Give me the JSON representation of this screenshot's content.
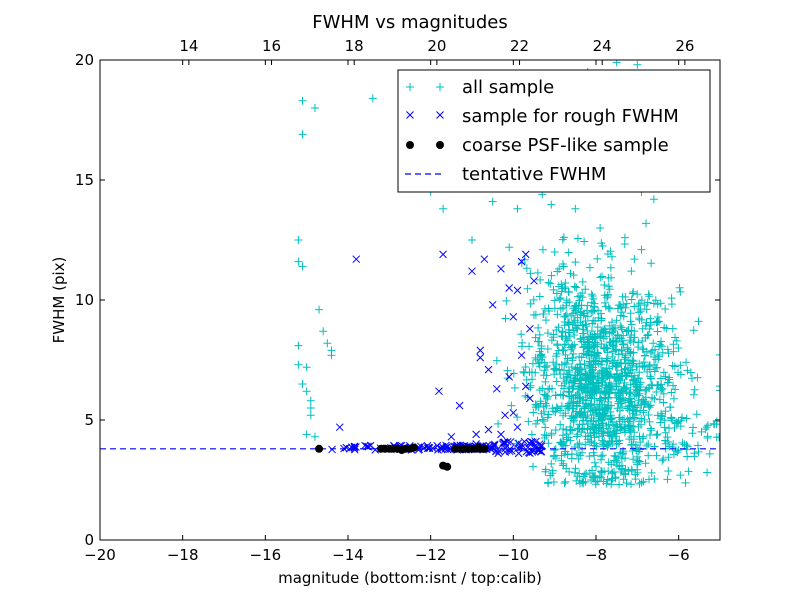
{
  "chart_data": {
    "type": "scatter",
    "title": "FWHM vs magnitudes",
    "xlabel": "magnitude (bottom:isnt / top:calib)",
    "ylabel": "FWHM (pix)",
    "xlim": [
      -20,
      -5
    ],
    "ylim": [
      0,
      20
    ],
    "x_ticks": [
      -20,
      -18,
      -16,
      -14,
      -12,
      -10,
      -8,
      -6
    ],
    "x_tick_labels": [
      "−20",
      "−18",
      "−16",
      "−14",
      "−12",
      "−10",
      "−8",
      "−6"
    ],
    "y_ticks": [
      0,
      5,
      10,
      15,
      20
    ],
    "y_tick_labels": [
      "0",
      "5",
      "10",
      "15",
      "20"
    ],
    "top_axis": {
      "offset": 31.85,
      "ticks": [
        14,
        16,
        18,
        20,
        22,
        24,
        26
      ],
      "tick_labels": [
        "14",
        "16",
        "18",
        "20",
        "22",
        "24",
        "26"
      ]
    },
    "grid": false,
    "legend_position": "top-right",
    "colors": {
      "all": "#00bfbf",
      "rough": "#0000ff",
      "coarse": "#000000",
      "tentative": "#0000ff"
    },
    "tentative_fwhm": 3.8,
    "series": [
      {
        "name": "all sample",
        "marker": "plus",
        "color": "#00bfbf",
        "points": [
          [
            -15.1,
            18.3
          ],
          [
            -14.8,
            18.0
          ],
          [
            -15.1,
            16.9
          ],
          [
            -13.4,
            18.4
          ],
          [
            -15.2,
            12.5
          ],
          [
            -15.2,
            11.6
          ],
          [
            -15.1,
            11.4
          ],
          [
            -14.7,
            9.6
          ],
          [
            -14.6,
            8.7
          ],
          [
            -14.5,
            8.2
          ],
          [
            -15.2,
            8.1
          ],
          [
            -14.4,
            7.9
          ],
          [
            -14.4,
            7.7
          ],
          [
            -15.2,
            7.3
          ],
          [
            -15.0,
            7.2
          ],
          [
            -15.1,
            6.5
          ],
          [
            -15.0,
            6.2
          ],
          [
            -14.9,
            5.8
          ],
          [
            -14.9,
            5.5
          ],
          [
            -14.9,
            5.2
          ],
          [
            -15.0,
            4.4
          ],
          [
            -14.8,
            4.3
          ],
          [
            -12.0,
            14.5
          ],
          [
            -11.7,
            13.8
          ],
          [
            -11.6,
            15.0
          ],
          [
            -10.5,
            14.1
          ],
          [
            -11.0,
            12.5
          ],
          [
            -10.1,
            12.2
          ],
          [
            -9.9,
            13.8
          ],
          [
            -9.3,
            14.4
          ],
          [
            -7.5,
            19.9
          ],
          [
            -7.0,
            19.8
          ],
          [
            -8.2,
            19.5
          ],
          [
            -7.8,
            19.2
          ],
          [
            -6.6,
            18.6
          ],
          [
            -8.6,
            18.0
          ],
          [
            -7.2,
            17.7
          ],
          [
            -6.9,
            14.5
          ],
          [
            -6.6,
            14.2
          ],
          [
            -7.3,
            12.6
          ],
          [
            -6.9,
            12.1
          ],
          [
            -7.9,
            13.0
          ],
          [
            -8.5,
            13.8
          ],
          [
            -9.0,
            12.0
          ],
          [
            -8.8,
            11.5
          ]
        ],
        "cluster": {
          "x_min": -10.4,
          "x_max": -5.0,
          "center_x": -7.9,
          "center_y": 6.0,
          "y_spread": 2.2,
          "y_min": 2.3,
          "y_max": 14.0,
          "count": 1400
        }
      },
      {
        "name": "sample for rough FWHM",
        "marker": "x",
        "color": "#0000ff",
        "points": [
          [
            -14.2,
            4.7
          ],
          [
            -13.8,
            11.7
          ],
          [
            -11.8,
            6.2
          ],
          [
            -11.7,
            11.9
          ],
          [
            -11.3,
            5.6
          ],
          [
            -11.0,
            11.2
          ],
          [
            -10.9,
            4.4
          ],
          [
            -10.9,
            4.0
          ],
          [
            -10.8,
            7.9
          ],
          [
            -10.8,
            7.6
          ],
          [
            -10.7,
            11.7
          ],
          [
            -10.6,
            7.1
          ],
          [
            -10.4,
            6.3
          ],
          [
            -10.3,
            4.4
          ],
          [
            -10.1,
            10.5
          ],
          [
            -10.1,
            6.8
          ],
          [
            -10.0,
            5.3
          ],
          [
            -10.5,
            9.8
          ],
          [
            -10.3,
            11.3
          ],
          [
            -10.0,
            9.3
          ],
          [
            -9.9,
            10.4
          ],
          [
            -9.8,
            7.7
          ],
          [
            -9.8,
            11.6
          ],
          [
            -9.7,
            6.4
          ],
          [
            -9.6,
            8.8
          ],
          [
            -9.6,
            5.9
          ],
          [
            -9.5,
            10.8
          ],
          [
            -9.9,
            4.7
          ],
          [
            -11.5,
            4.3
          ],
          [
            -10.6,
            4.6
          ],
          [
            -10.2,
            5.2
          ],
          [
            -9.7,
            11.9
          ]
        ],
        "band": {
          "x_min": -14.5,
          "x_max": -9.3,
          "y_center": 3.85,
          "y_spread": 0.1,
          "count": 150
        }
      },
      {
        "name": "coarse PSF-like sample",
        "marker": "circle",
        "color": "#000000",
        "points": [
          [
            -14.7,
            3.8
          ],
          [
            -13.2,
            3.8
          ],
          [
            -13.1,
            3.8
          ],
          [
            -13.0,
            3.8
          ],
          [
            -12.9,
            3.8
          ],
          [
            -12.8,
            3.8
          ],
          [
            -12.7,
            3.75
          ],
          [
            -12.6,
            3.8
          ],
          [
            -12.5,
            3.8
          ],
          [
            -12.4,
            3.85
          ],
          [
            -11.7,
            3.1
          ],
          [
            -11.6,
            3.05
          ],
          [
            -11.4,
            3.8
          ],
          [
            -11.3,
            3.8
          ],
          [
            -11.2,
            3.8
          ],
          [
            -11.1,
            3.8
          ],
          [
            -11.0,
            3.8
          ],
          [
            -10.9,
            3.8
          ],
          [
            -10.85,
            3.85
          ],
          [
            -10.8,
            3.8
          ],
          [
            -10.75,
            3.8
          ],
          [
            -10.7,
            3.8
          ]
        ]
      },
      {
        "name": "tentative FWHM",
        "marker": "dashed-line",
        "color": "#0000ff"
      }
    ]
  }
}
